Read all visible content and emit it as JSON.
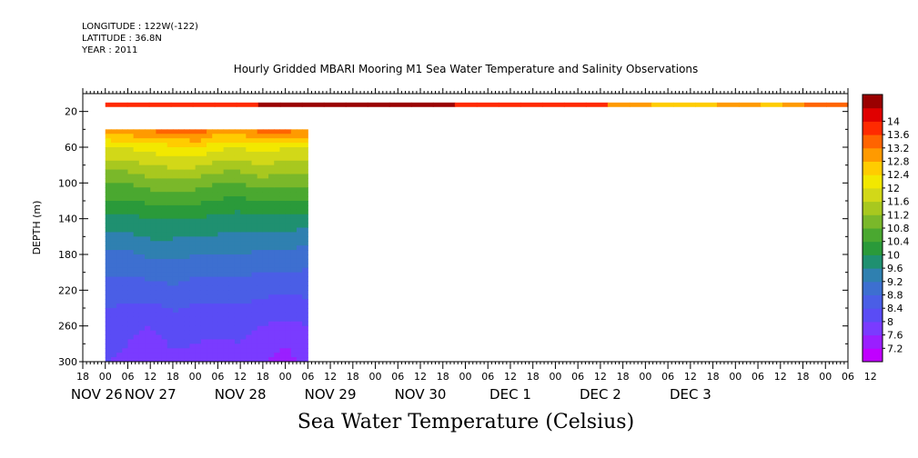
{
  "header": {
    "longitude": "LONGITUDE : 122W(-122)",
    "latitude": "LATITUDE : 36.8N",
    "year": "YEAR : 2011",
    "title": "Hourly Gridded MBARI Mooring M1 Sea Water Temperature and Salinity Observations"
  },
  "footer": {
    "variable_label": "Sea Water Temperature (Celsius)"
  },
  "chart_data": {
    "type": "heatmap",
    "title": "Hourly Gridded MBARI Mooring M1 Sea Water Temperature and Salinity Observations",
    "xlabel": "",
    "ylabel": "DEPTH (m)",
    "colorbar_label": "Sea Water Temperature (Celsius)",
    "x_range_hours": [
      -6,
      198
    ],
    "x_tick_labels": [
      "18",
      "00",
      "06",
      "12",
      "18",
      "00",
      "06",
      "12",
      "18",
      "00",
      "06",
      "12",
      "18",
      "00",
      "06",
      "12",
      "18",
      "00",
      "06",
      "12",
      "18",
      "00",
      "06",
      "12",
      "18",
      "00",
      "06",
      "12",
      "18",
      "00",
      "06",
      "12",
      "18",
      "00",
      "06",
      "12"
    ],
    "x_tick_start_hours": -6,
    "x_tick_step_hours": 6,
    "date_labels": [
      {
        "text": "NOV 26",
        "hour": -12
      },
      {
        "text": "NOV 27",
        "hour": 12
      },
      {
        "text": "NOV 28",
        "hour": 36
      },
      {
        "text": "NOV 29",
        "hour": 60
      },
      {
        "text": "NOV 30",
        "hour": 84
      },
      {
        "text": "DEC  1",
        "hour": 108
      },
      {
        "text": "DEC  2",
        "hour": 132
      },
      {
        "text": "DEC  3",
        "hour": 156
      }
    ],
    "y_range": [
      0,
      300
    ],
    "y_reversed": true,
    "y_ticks": [
      20,
      60,
      100,
      140,
      180,
      220,
      260,
      300
    ],
    "colorbar_levels": [
      7.2,
      7.6,
      8,
      8.4,
      8.8,
      9.2,
      9.6,
      10,
      10.4,
      10.8,
      11.2,
      11.6,
      12,
      12.4,
      12.8,
      13.2,
      13.6,
      14
    ],
    "colorbar_colors": [
      "#c000ff",
      "#9a1fff",
      "#7a3bff",
      "#5a4cf5",
      "#4a5ee6",
      "#3d6fd0",
      "#2f80b0",
      "#1f9070",
      "#2a9a3a",
      "#4aa830",
      "#7ab82a",
      "#a8c81f",
      "#d2d818",
      "#f2e800",
      "#ffcc00",
      "#ff9a00",
      "#ff6400",
      "#ff2a00",
      "#e00000",
      "#9a0000"
    ],
    "surface_band": {
      "depth_top": 10,
      "depth_bottom": 15,
      "hour_start": 0,
      "hour_end": 198,
      "temperatures": [
        13.9,
        13.9,
        13.9,
        13.9,
        13.8,
        13.9,
        13.9,
        14.0,
        14.0,
        14.0,
        14.0,
        14.0,
        14.1,
        14.2,
        14.0,
        14.0,
        13.9,
        13.9,
        13.9,
        13.9,
        13.8,
        13.8,
        13.6,
        13.0,
        12.8,
        12.6,
        12.4,
        12.6,
        13.0,
        13.0,
        12.6,
        13.0,
        13.2,
        13.2
      ]
    },
    "profile_block": {
      "hour_start": 0,
      "hour_end": 54,
      "depth_top": 40,
      "depth_bottom": 300,
      "depths": [
        40,
        60,
        100,
        140,
        180,
        220,
        260,
        300
      ],
      "columns": [
        {
          "hour": 0,
          "temps": [
            13.0,
            12.0,
            10.8,
            9.9,
            9.1,
            8.6,
            8.2,
            8.0
          ]
        },
        {
          "hour": 6,
          "temps": [
            13.2,
            12.0,
            10.8,
            9.9,
            9.1,
            8.6,
            8.1,
            7.9
          ]
        },
        {
          "hour": 12,
          "temps": [
            13.3,
            12.2,
            11.0,
            10.0,
            9.3,
            8.6,
            8.0,
            7.7
          ]
        },
        {
          "hour": 18,
          "temps": [
            13.4,
            12.3,
            11.1,
            10.0,
            9.3,
            8.7,
            8.2,
            7.9
          ]
        },
        {
          "hour": 24,
          "temps": [
            13.6,
            12.4,
            11.0,
            10.0,
            9.2,
            8.6,
            8.1,
            7.9
          ]
        },
        {
          "hour": 30,
          "temps": [
            13.1,
            12.1,
            10.8,
            9.9,
            9.2,
            8.6,
            8.1,
            7.8
          ]
        },
        {
          "hour": 36,
          "temps": [
            13.2,
            12.0,
            10.8,
            9.8,
            9.2,
            8.6,
            8.1,
            7.9
          ]
        },
        {
          "hour": 42,
          "temps": [
            13.4,
            12.2,
            11.0,
            9.9,
            9.1,
            8.5,
            8.0,
            7.6
          ]
        },
        {
          "hour": 48,
          "temps": [
            13.4,
            12.0,
            10.9,
            9.9,
            9.1,
            8.5,
            7.9,
            7.4
          ]
        },
        {
          "hour": 54,
          "temps": [
            13.3,
            12.0,
            10.9,
            9.8,
            9.0,
            8.5,
            8.0,
            7.8
          ]
        }
      ]
    },
    "grid": false,
    "legend": "colorbar-right"
  }
}
